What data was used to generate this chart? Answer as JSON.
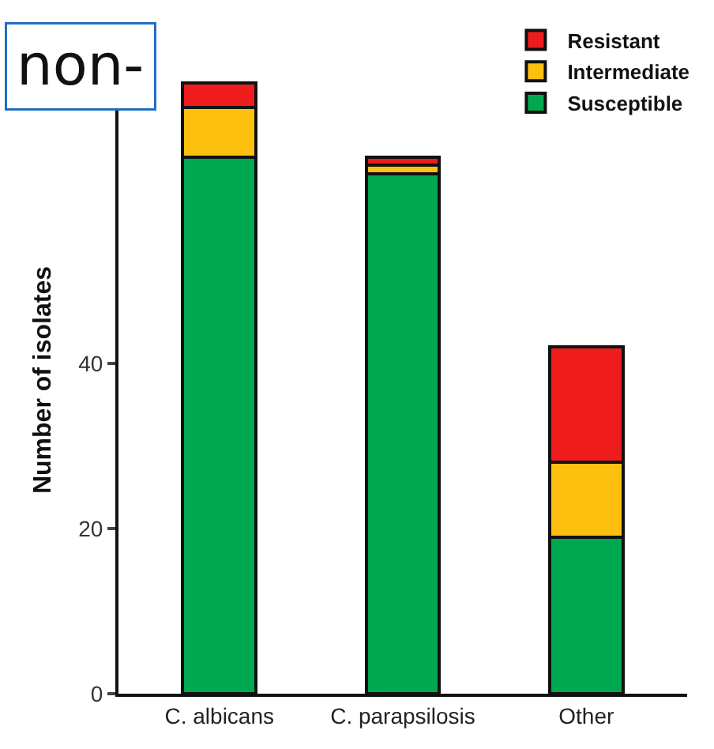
{
  "chart_data": {
    "type": "bar",
    "stacked": true,
    "ylabel": "Number of isolates",
    "categories": [
      "C. albicans",
      "C. parapsilosis",
      "Other"
    ],
    "series": [
      {
        "name": "Susceptible",
        "color": "#00a84f",
        "values": [
          65,
          63,
          19
        ]
      },
      {
        "name": "Intermediate",
        "color": "#fdc00f",
        "values": [
          6,
          1,
          9
        ]
      },
      {
        "name": "Resistant",
        "color": "#ee1c1c",
        "values": [
          3,
          1,
          14
        ]
      }
    ],
    "ylim": [
      0,
      76
    ],
    "yticks": [
      0,
      20,
      40
    ],
    "grid": false,
    "legend": "top right",
    "annotations": [
      "non-"
    ]
  }
}
